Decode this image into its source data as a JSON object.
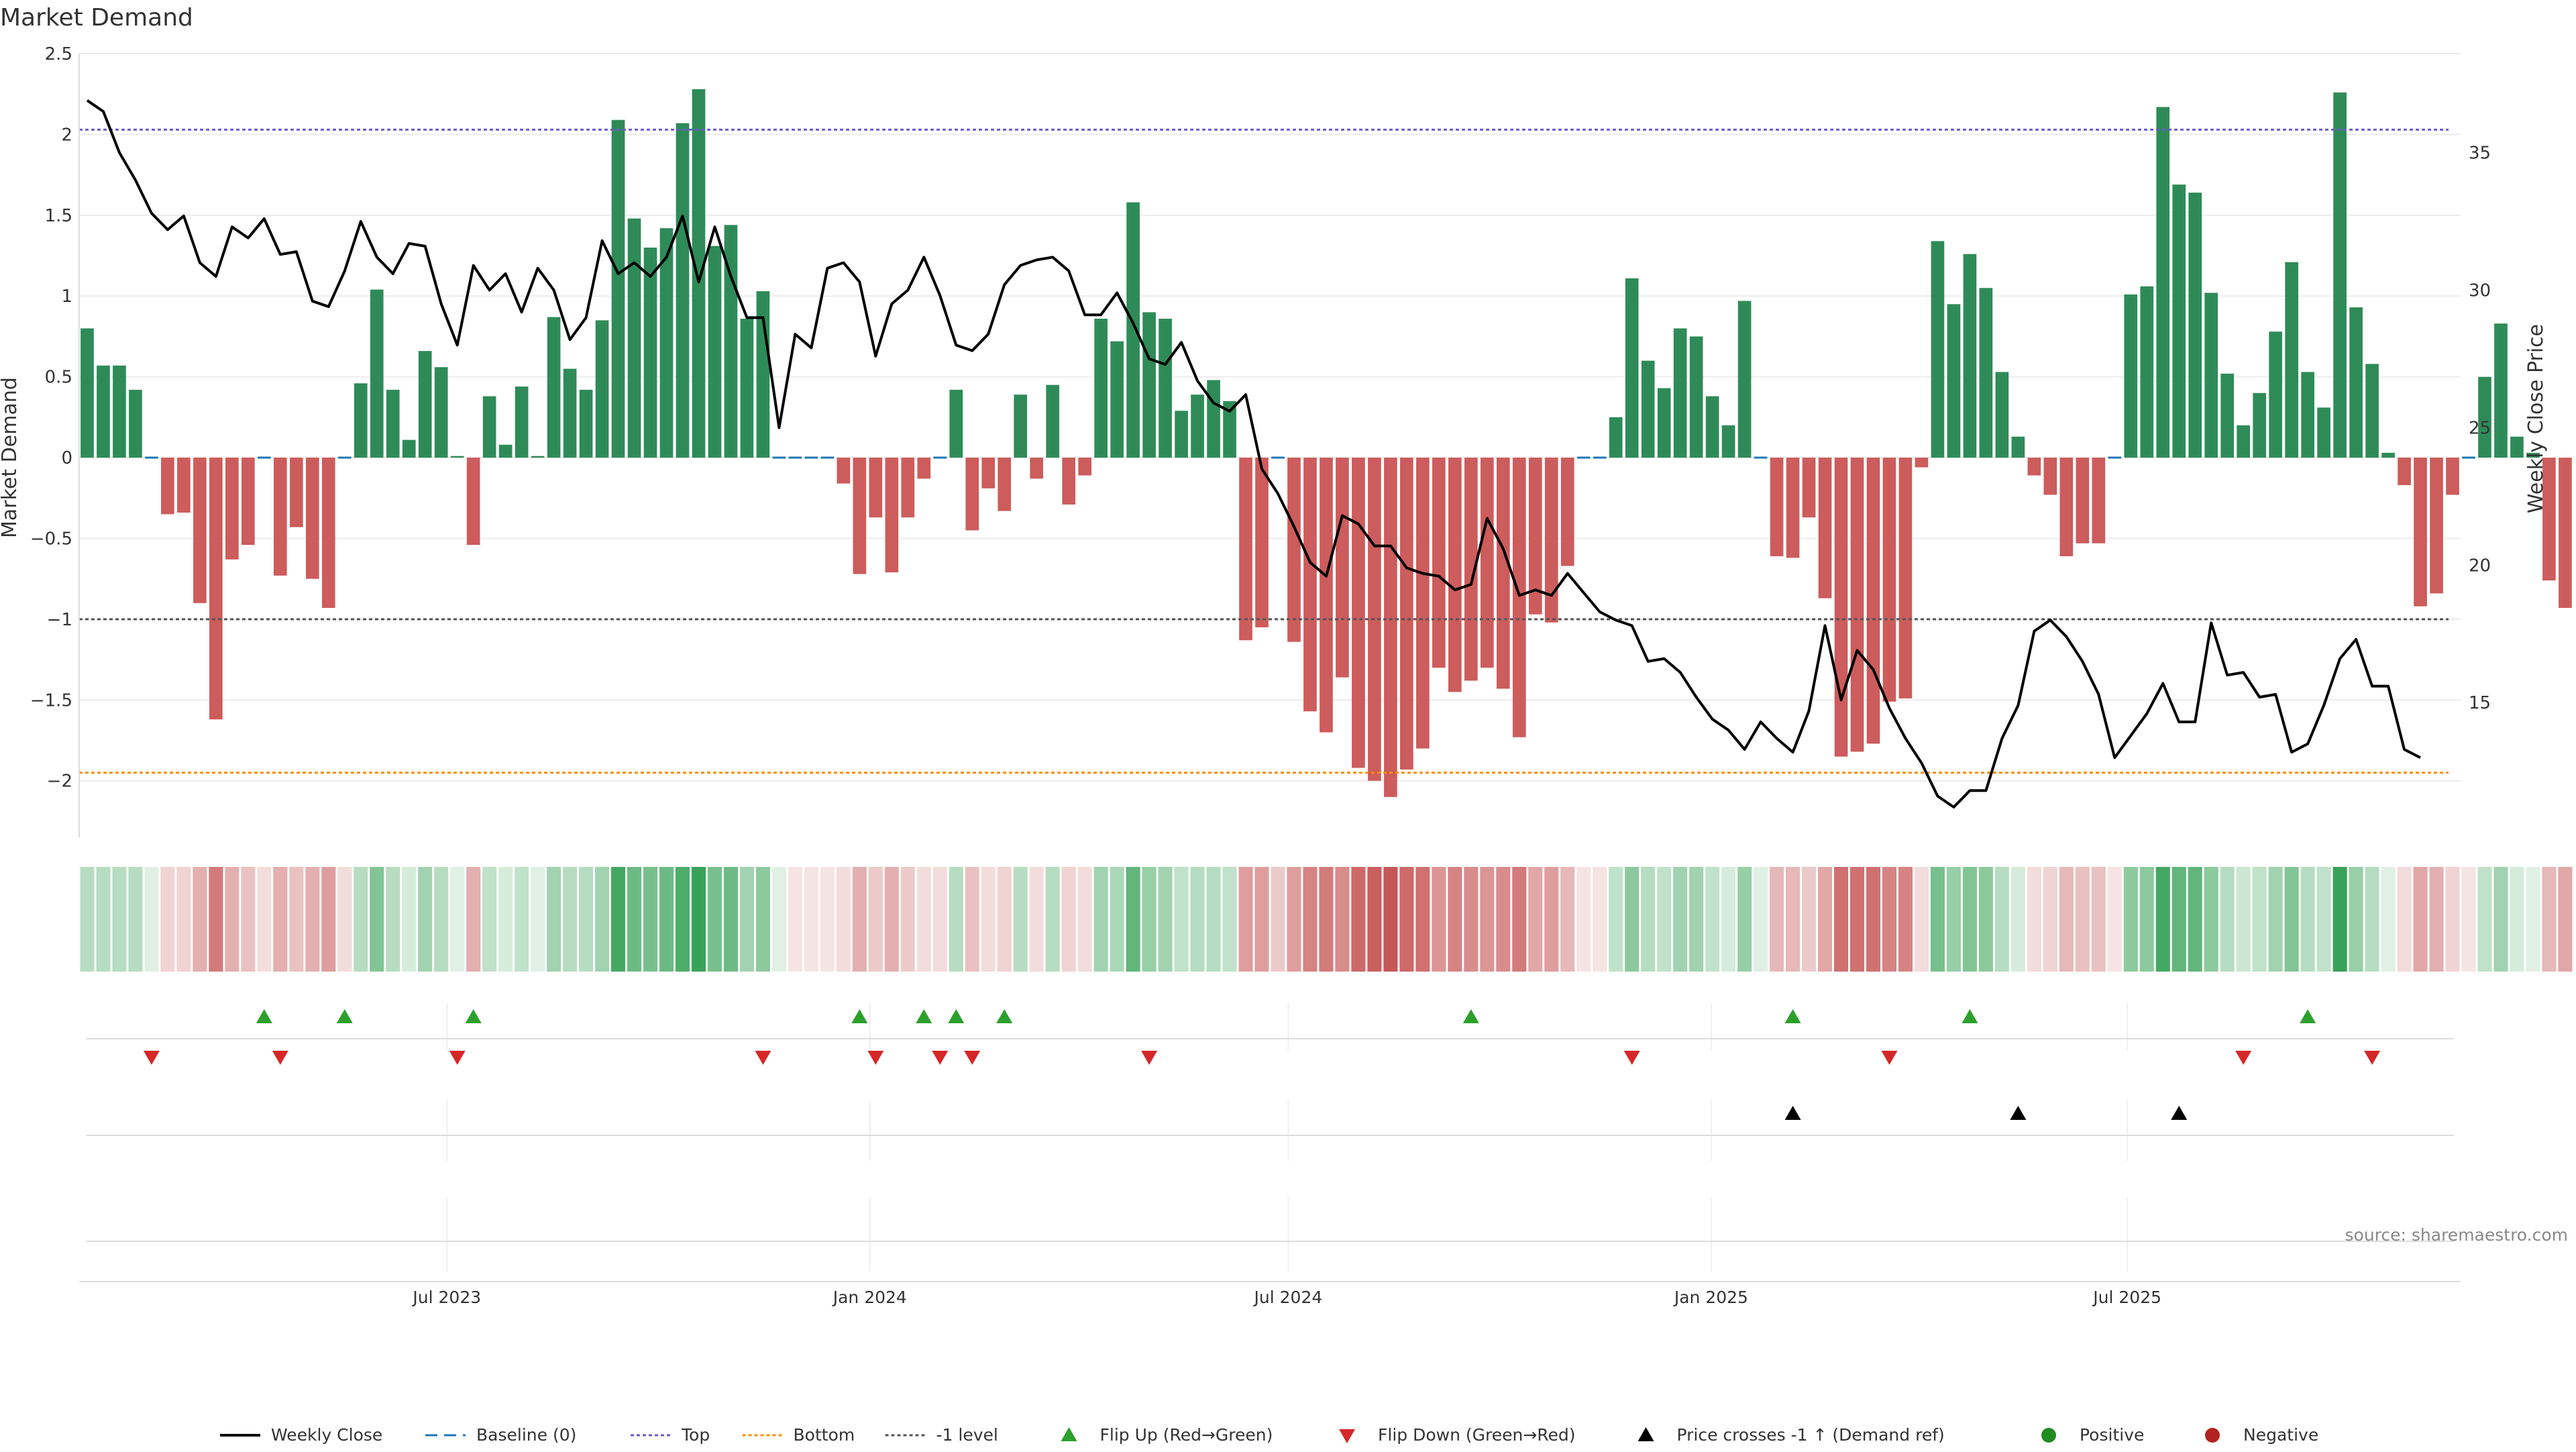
{
  "title": "Market Demand",
  "source": "source: sharemaestro.com",
  "colors": {
    "positive": "#2e8b57",
    "negative": "#cd5c5c",
    "price_line": "#000000",
    "baseline": "#1f77b4",
    "top": "#6a5acd",
    "bottom": "#ff8c00",
    "minus_one": "#555555",
    "flip_up": "#2ca02c",
    "flip_down": "#d62728",
    "cross_marker": "#000000"
  },
  "chart_data": {
    "type": "bar",
    "title": "Market Demand",
    "ylabel": "Market Demand",
    "y2label": "Weekly Close Price",
    "ylim": [
      -2.35,
      2.5
    ],
    "y2lim": [
      10.1,
      38.6
    ],
    "yticks": [
      2.5,
      2,
      1.5,
      1,
      0.5,
      0,
      -0.5,
      -1,
      -1.5,
      -2
    ],
    "ytick_labels": [
      "2.5",
      "2",
      "1.5",
      "1",
      "0.5",
      "0",
      "−0.5",
      "−1",
      "−1.5",
      "−2"
    ],
    "y2ticks": [
      35,
      30,
      25,
      20,
      15
    ],
    "y2tick_labels": [
      "35",
      "30",
      "25",
      "20",
      "15"
    ],
    "x_start": "2023-01-22",
    "x_end": "2025-11-23",
    "xticks": [
      {
        "date": "2023-07-01",
        "label": "Jul 2023"
      },
      {
        "date": "2024-01-01",
        "label": "Jan 2024"
      },
      {
        "date": "2024-07-01",
        "label": "Jul 2024"
      },
      {
        "date": "2025-01-01",
        "label": "Jan 2025"
      },
      {
        "date": "2025-07-01",
        "label": "Jul 2025"
      }
    ],
    "first_week": "2023-01-22",
    "levels": {
      "top": 2.03,
      "bottom": -1.95,
      "minus_one": -1.0
    },
    "demand": [
      0.8,
      0.57,
      0.57,
      0.42,
      0,
      -0.35,
      -0.34,
      -0.9,
      -1.62,
      -0.63,
      -0.54,
      0,
      -0.73,
      -0.43,
      -0.75,
      -0.93,
      0,
      0.46,
      1.04,
      0.42,
      0.11,
      0.66,
      0.56,
      0.01,
      -0.54,
      0.38,
      0.08,
      0.44,
      0.01,
      0.87,
      0.55,
      0.42,
      0.85,
      2.09,
      1.48,
      1.3,
      1.42,
      2.07,
      2.28,
      1.31,
      1.44,
      0.86,
      1.03,
      0,
      0,
      0,
      0,
      -0.16,
      -0.72,
      -0.37,
      -0.71,
      -0.37,
      -0.13,
      0,
      0.42,
      -0.45,
      -0.19,
      -0.33,
      0.39,
      -0.13,
      0.45,
      -0.29,
      -0.11,
      0.86,
      0.72,
      1.58,
      0.9,
      0.86,
      0.29,
      0.39,
      0.48,
      0.35,
      -1.13,
      -1.05,
      0,
      -1.14,
      -1.57,
      -1.7,
      -1.36,
      -1.92,
      -2.0,
      -2.1,
      -1.93,
      -1.8,
      -1.3,
      -1.45,
      -1.38,
      -1.3,
      -1.43,
      -1.73,
      -0.97,
      -1.02,
      -0.67,
      0,
      0,
      0.25,
      1.11,
      0.6,
      0.43,
      0.8,
      0.75,
      0.38,
      0.2,
      0.97,
      0,
      -0.61,
      -0.62,
      -0.37,
      -0.87,
      -1.85,
      -1.82,
      -1.77,
      -1.51,
      -1.49,
      -0.06,
      1.34,
      0.95,
      1.26,
      1.05,
      0.53,
      0.13,
      -0.11,
      -0.23,
      -0.61,
      -0.53,
      -0.53,
      0,
      1.01,
      1.06,
      2.17,
      1.69,
      1.64,
      1.02,
      0.52,
      0.2,
      0.4,
      0.78,
      1.21,
      0.53,
      0.31,
      2.26,
      0.93,
      0.58,
      0.03,
      -0.17,
      -0.92,
      -0.84,
      -0.23,
      0,
      0.5,
      0.83,
      0.13,
      0.03,
      -0.76,
      -0.93
    ],
    "intensity": [
      0.35,
      0.35,
      0.35,
      0.35,
      0.15,
      0.25,
      0.25,
      0.45,
      0.75,
      0.45,
      0.35,
      0.2,
      0.45,
      0.35,
      0.45,
      0.55,
      0.2,
      0.35,
      0.6,
      0.35,
      0.2,
      0.45,
      0.35,
      0.15,
      0.45,
      0.3,
      0.2,
      0.3,
      0.15,
      0.45,
      0.35,
      0.35,
      0.45,
      0.9,
      0.7,
      0.65,
      0.7,
      0.85,
      0.95,
      0.65,
      0.7,
      0.45,
      0.55,
      0.15,
      0.15,
      0.15,
      0.15,
      0.2,
      0.45,
      0.3,
      0.45,
      0.3,
      0.2,
      0.2,
      0.35,
      0.35,
      0.2,
      0.25,
      0.35,
      0.2,
      0.35,
      0.25,
      0.2,
      0.45,
      0.4,
      0.75,
      0.5,
      0.45,
      0.3,
      0.35,
      0.35,
      0.3,
      0.55,
      0.55,
      0.3,
      0.55,
      0.7,
      0.75,
      0.65,
      0.85,
      0.9,
      0.95,
      0.85,
      0.8,
      0.6,
      0.7,
      0.65,
      0.6,
      0.65,
      0.75,
      0.5,
      0.55,
      0.4,
      0.15,
      0.15,
      0.3,
      0.55,
      0.35,
      0.3,
      0.45,
      0.45,
      0.3,
      0.2,
      0.5,
      0.15,
      0.4,
      0.4,
      0.3,
      0.5,
      0.8,
      0.8,
      0.8,
      0.7,
      0.7,
      0.2,
      0.65,
      0.5,
      0.6,
      0.55,
      0.35,
      0.2,
      0.2,
      0.25,
      0.4,
      0.35,
      0.35,
      0.15,
      0.55,
      0.55,
      0.9,
      0.75,
      0.75,
      0.55,
      0.35,
      0.25,
      0.3,
      0.45,
      0.6,
      0.35,
      0.3,
      0.95,
      0.5,
      0.35,
      0.15,
      0.2,
      0.5,
      0.45,
      0.25,
      0.15,
      0.3,
      0.45,
      0.2,
      0.15,
      0.4,
      0.5
    ],
    "price": [
      36.9,
      36.5,
      35.0,
      34.0,
      32.8,
      32.2,
      32.7,
      31.0,
      30.5,
      32.3,
      31.9,
      32.6,
      31.3,
      31.4,
      29.6,
      29.4,
      30.7,
      32.5,
      31.2,
      30.6,
      31.7,
      31.6,
      29.5,
      28.0,
      30.9,
      30.0,
      30.6,
      29.2,
      30.8,
      30.0,
      28.2,
      29.0,
      31.8,
      30.6,
      31.0,
      30.5,
      31.2,
      32.7,
      30.3,
      32.3,
      30.5,
      29.0,
      29.0,
      25.0,
      28.4,
      27.9,
      30.8,
      31.0,
      30.3,
      27.6,
      29.5,
      30.0,
      31.2,
      29.8,
      28.0,
      27.8,
      28.4,
      30.2,
      30.9,
      31.1,
      31.2,
      30.7,
      29.1,
      29.1,
      29.9,
      28.8,
      27.5,
      27.3,
      28.1,
      26.7,
      25.9,
      25.6,
      26.2,
      23.5,
      22.6,
      21.4,
      20.1,
      19.6,
      21.8,
      21.5,
      20.7,
      20.7,
      19.9,
      19.7,
      19.6,
      19.1,
      19.3,
      21.7,
      20.6,
      18.9,
      19.1,
      18.9,
      19.7,
      19.0,
      18.3,
      18.0,
      17.8,
      16.5,
      16.6,
      16.1,
      15.2,
      14.4,
      14.0,
      13.3,
      14.3,
      13.7,
      13.2,
      14.7,
      17.8,
      15.1,
      16.9,
      16.2,
      14.8,
      13.7,
      12.8,
      11.6,
      11.2,
      11.8,
      11.8,
      13.7,
      14.9,
      17.6,
      18.0,
      17.4,
      16.5,
      15.3,
      13.0,
      13.8,
      14.6,
      15.7,
      14.3,
      14.3,
      17.9,
      16.0,
      16.1,
      15.2,
      15.3,
      13.2,
      13.5,
      14.9,
      16.6,
      17.3,
      15.6,
      15.6,
      13.3,
      13.0
    ],
    "flip_up_weeks": [
      11,
      16,
      24,
      48,
      52,
      54,
      57,
      86,
      106,
      117,
      138
    ],
    "flip_down_weeks": [
      4,
      12,
      23,
      42,
      49,
      53,
      55,
      66,
      96,
      112,
      134,
      142
    ],
    "cross_weeks": [
      106,
      120,
      130
    ],
    "legend": [
      {
        "label": "Weekly Close",
        "marker": "line"
      },
      {
        "label": "Baseline (0)",
        "marker": "dash"
      },
      {
        "label": "Top",
        "marker": "dot"
      },
      {
        "label": "Bottom",
        "marker": "dot"
      },
      {
        "label": "-1 level",
        "marker": "dot"
      },
      {
        "label": "Flip Up (Red→Green)",
        "marker": "tri-up"
      },
      {
        "label": "Flip Down (Green→Red)",
        "marker": "tri-down"
      },
      {
        "label": "Price crosses -1 ↑ (Demand ref)",
        "marker": "tri-black"
      },
      {
        "label": "Positive",
        "marker": "circle-green"
      },
      {
        "label": "Negative",
        "marker": "circle-red"
      }
    ],
    "legend_placement": "bottom-center"
  }
}
